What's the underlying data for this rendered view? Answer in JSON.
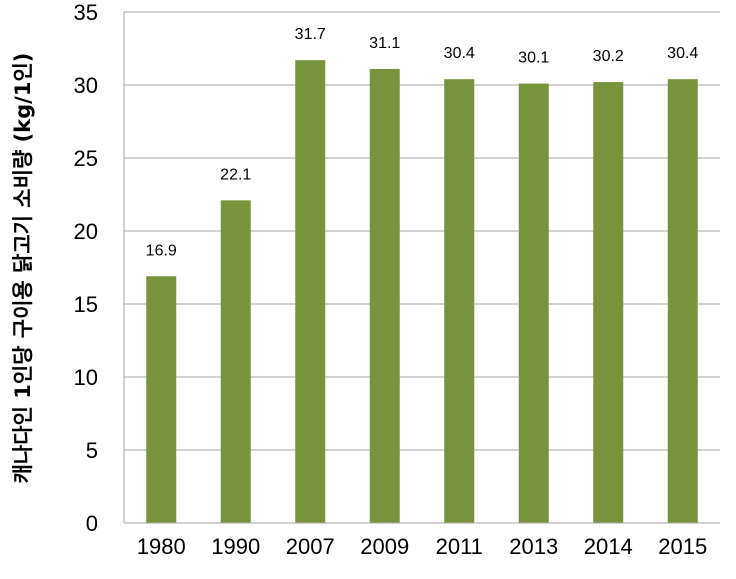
{
  "chart_data": {
    "type": "bar",
    "ylabel": "캐나다인 1인당 구이용 닭고기 소비량 (kg/1인)",
    "xlabel": "",
    "title": "",
    "categories": [
      "1980",
      "1990",
      "2007",
      "2009",
      "2011",
      "2013",
      "2014",
      "2015"
    ],
    "values": [
      16.9,
      22.1,
      31.7,
      31.1,
      30.4,
      30.1,
      30.2,
      30.4
    ],
    "data_labels": [
      "16.9",
      "22.1",
      "31.7",
      "31.1",
      "30.4",
      "30.1",
      "30.2",
      "30.4"
    ],
    "ylim": [
      0,
      35
    ],
    "yticks": [
      0,
      5,
      10,
      15,
      20,
      25,
      30,
      35
    ],
    "grid": true,
    "legend": "none",
    "bar_color": "#77933c",
    "grid_color": "#a6a6a6"
  }
}
